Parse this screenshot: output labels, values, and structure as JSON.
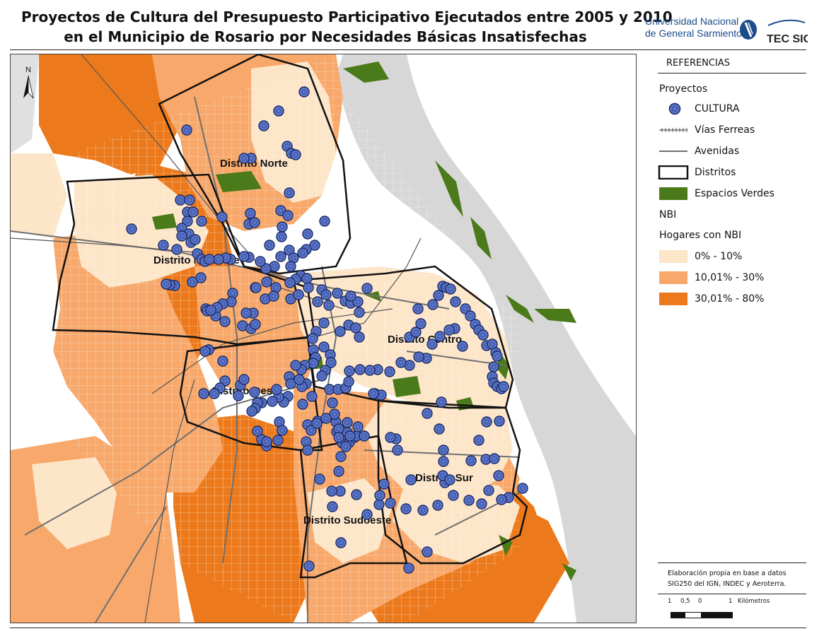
{
  "title": {
    "line1": "Proyectos de Cultura del Presupuesto Participativo Ejecutados entre 2005 y 2010",
    "line2": "en el Municipio de Rosario por Necesidades Básicas Insatisfechas"
  },
  "logos": {
    "ungs_line1": "Universidad Nacional",
    "ungs_line2": "de General Sarmiento",
    "tecsig": "TEC SIG"
  },
  "map": {
    "north_label": "N",
    "districts": [
      "Distrito Norte",
      "Distrito Noroeste",
      "Distrito Centro",
      "Distrito Oeste",
      "Distrito Sur",
      "Distrito Sudoeste"
    ]
  },
  "legend": {
    "header": "REFERENCIAS",
    "projects_heading": "Proyectos",
    "cultura": "CULTURA",
    "railways": "Vías Ferreas",
    "avenues": "Avenidas",
    "districts": "Distritos",
    "green": "Espacios Verdes",
    "nbi_heading": "NBI",
    "households_heading": "Hogares con NBI",
    "classes": [
      "0% - 10%",
      "10,01% - 30%",
      "30,01% - 80%"
    ]
  },
  "colors": {
    "low": "#fde5c8",
    "mid": "#f7a86a",
    "high": "#ec7a1c",
    "green": "#4a7a1a",
    "point": "#5a74c8",
    "river": "#d7d7d7",
    "outside": "#ffffff"
  },
  "credits": {
    "line1": "Elaboración propia en base a datos",
    "line2": "SIG250 del IGN, INDEC y Aeroterra."
  },
  "scale": {
    "labels": [
      "1",
      "0,5",
      "0",
      "1"
    ],
    "unit": "Kilómetros"
  }
}
